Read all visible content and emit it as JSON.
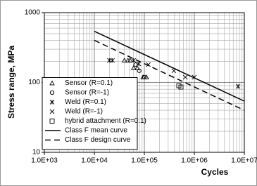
{
  "chart_data": {
    "type": "scatter",
    "y_label": "Stress range, MPa",
    "x_label": "Cycles",
    "xlog": true,
    "ylog": true,
    "grid": true,
    "xlim": [
      1000,
      10000000
    ],
    "ylim": [
      10,
      1000
    ],
    "xticks": [
      {
        "value": 1000,
        "label": "1.0E+03"
      },
      {
        "value": 10000,
        "label": "1.0E+04"
      },
      {
        "value": 100000,
        "label": "1.0E+05"
      },
      {
        "value": 1000000,
        "label": "1.0E+06"
      },
      {
        "value": 10000000,
        "label": "1.0E+07"
      }
    ],
    "yticks": [
      10,
      100,
      1000
    ],
    "legend_position": "lower-left",
    "series": [
      {
        "name": "Sensor (R=0.1)",
        "marker": "triangle",
        "color": "#000000",
        "x": [
          40000,
          47000,
          52000,
          61000,
          72000,
          94000,
          110000
        ],
        "values": [
          207,
          207,
          207,
          161,
          161,
          119,
          119
        ]
      },
      {
        "name": "Sensor (R=-1)",
        "marker": "circle",
        "color": "#000000",
        "x": [
          67000,
          79000,
          100000
        ],
        "values": [
          180,
          147,
          119
        ]
      },
      {
        "name": "Weld (R=0.1)",
        "marker": "asterisk",
        "color": "#000000",
        "x": [
          20000,
          23000,
          61000,
          77000,
          7500000
        ],
        "values": [
          207,
          207,
          207,
          185,
          88
        ]
      },
      {
        "name": "Weld (R=-1)",
        "marker": "x",
        "color": "#000000",
        "x": [
          120000,
          390000,
          660000,
          1000000
        ],
        "values": [
          180,
          147,
          119,
          119
        ]
      },
      {
        "name": "hybrid attachment (R=0.1)",
        "marker": "square",
        "color": "#000000",
        "x": [
          490000,
          540000
        ],
        "values": [
          90,
          86
        ]
      },
      {
        "name": "Class F mean curve",
        "line_style": "solid",
        "color": "#000000",
        "x": [
          10000,
          10000000
        ],
        "values": [
          541,
          54
        ]
      },
      {
        "name": "Class F design curve",
        "line_style": "dashed",
        "color": "#000000",
        "x": [
          10000,
          10000000
        ],
        "values": [
          401,
          40
        ]
      }
    ]
  }
}
